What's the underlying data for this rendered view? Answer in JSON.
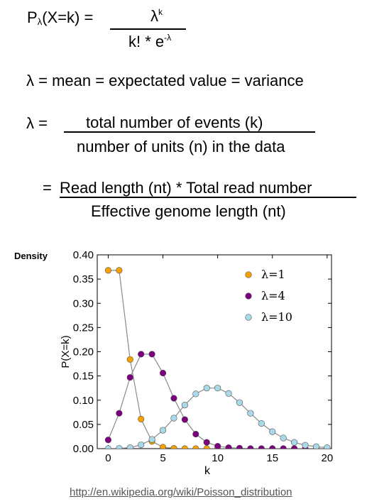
{
  "formulas": {
    "pmf_lhs_p": "P",
    "pmf_lhs_sub": "λ",
    "pmf_lhs_rest": "(X=k) =",
    "pmf_num_base": "λ",
    "pmf_num_sup": "k",
    "pmf_den_base": "k! * e",
    "pmf_den_sup": "-λ",
    "lambda_def": "λ = mean = expectated value = variance",
    "lambda_eq": "λ =",
    "lambda_num": "total number of events (k)",
    "lambda_den": "number of units (n) in the data",
    "eq_sign": "=",
    "read_num": "Read length (nt) * Total read number",
    "read_den": "Effective genome length (nt)"
  },
  "source_link": "http://en.wikipedia.org/wiki/Poisson_distribution",
  "chart_data": {
    "type": "scatter",
    "ylabel_left": "Density",
    "ylabel": "P(X=k)",
    "xlabel": "k",
    "xlim": [
      -1,
      20.4
    ],
    "ylim": [
      0,
      0.4
    ],
    "xticks": [
      0,
      5,
      10,
      15,
      20
    ],
    "yticks": [
      "0.00",
      "0.05",
      "0.10",
      "0.15",
      "0.20",
      "0.25",
      "0.30",
      "0.35",
      "0.40"
    ],
    "legend_position": "top-right",
    "series": [
      {
        "name": "λ=1",
        "color": "#f5a000",
        "x": [
          0,
          1,
          2,
          3,
          4,
          5,
          6,
          7,
          8,
          9,
          10,
          11,
          12,
          13,
          14,
          15,
          16,
          17,
          18,
          19,
          20
        ],
        "y": [
          0.368,
          0.368,
          0.184,
          0.061,
          0.015,
          0.003,
          0.0005,
          0,
          0,
          0,
          0,
          0,
          0,
          0,
          0,
          0,
          0,
          0,
          0,
          0,
          0
        ]
      },
      {
        "name": "λ=4",
        "color": "#7a0080",
        "x": [
          0,
          1,
          2,
          3,
          4,
          5,
          6,
          7,
          8,
          9,
          10,
          11,
          12,
          13,
          14,
          15,
          16,
          17,
          18,
          19,
          20
        ],
        "y": [
          0.018,
          0.073,
          0.147,
          0.195,
          0.195,
          0.156,
          0.104,
          0.06,
          0.03,
          0.013,
          0.005,
          0.002,
          0.001,
          0,
          0,
          0,
          0,
          0,
          0,
          0,
          0
        ]
      },
      {
        "name": "λ=10",
        "color": "#a9d8e8",
        "x": [
          0,
          1,
          2,
          3,
          4,
          5,
          6,
          7,
          8,
          9,
          10,
          11,
          12,
          13,
          14,
          15,
          16,
          17,
          18,
          19,
          20
        ],
        "y": [
          0,
          0.0005,
          0.002,
          0.008,
          0.019,
          0.038,
          0.063,
          0.09,
          0.113,
          0.125,
          0.125,
          0.114,
          0.095,
          0.073,
          0.052,
          0.035,
          0.022,
          0.013,
          0.007,
          0.004,
          0.002
        ]
      }
    ]
  }
}
